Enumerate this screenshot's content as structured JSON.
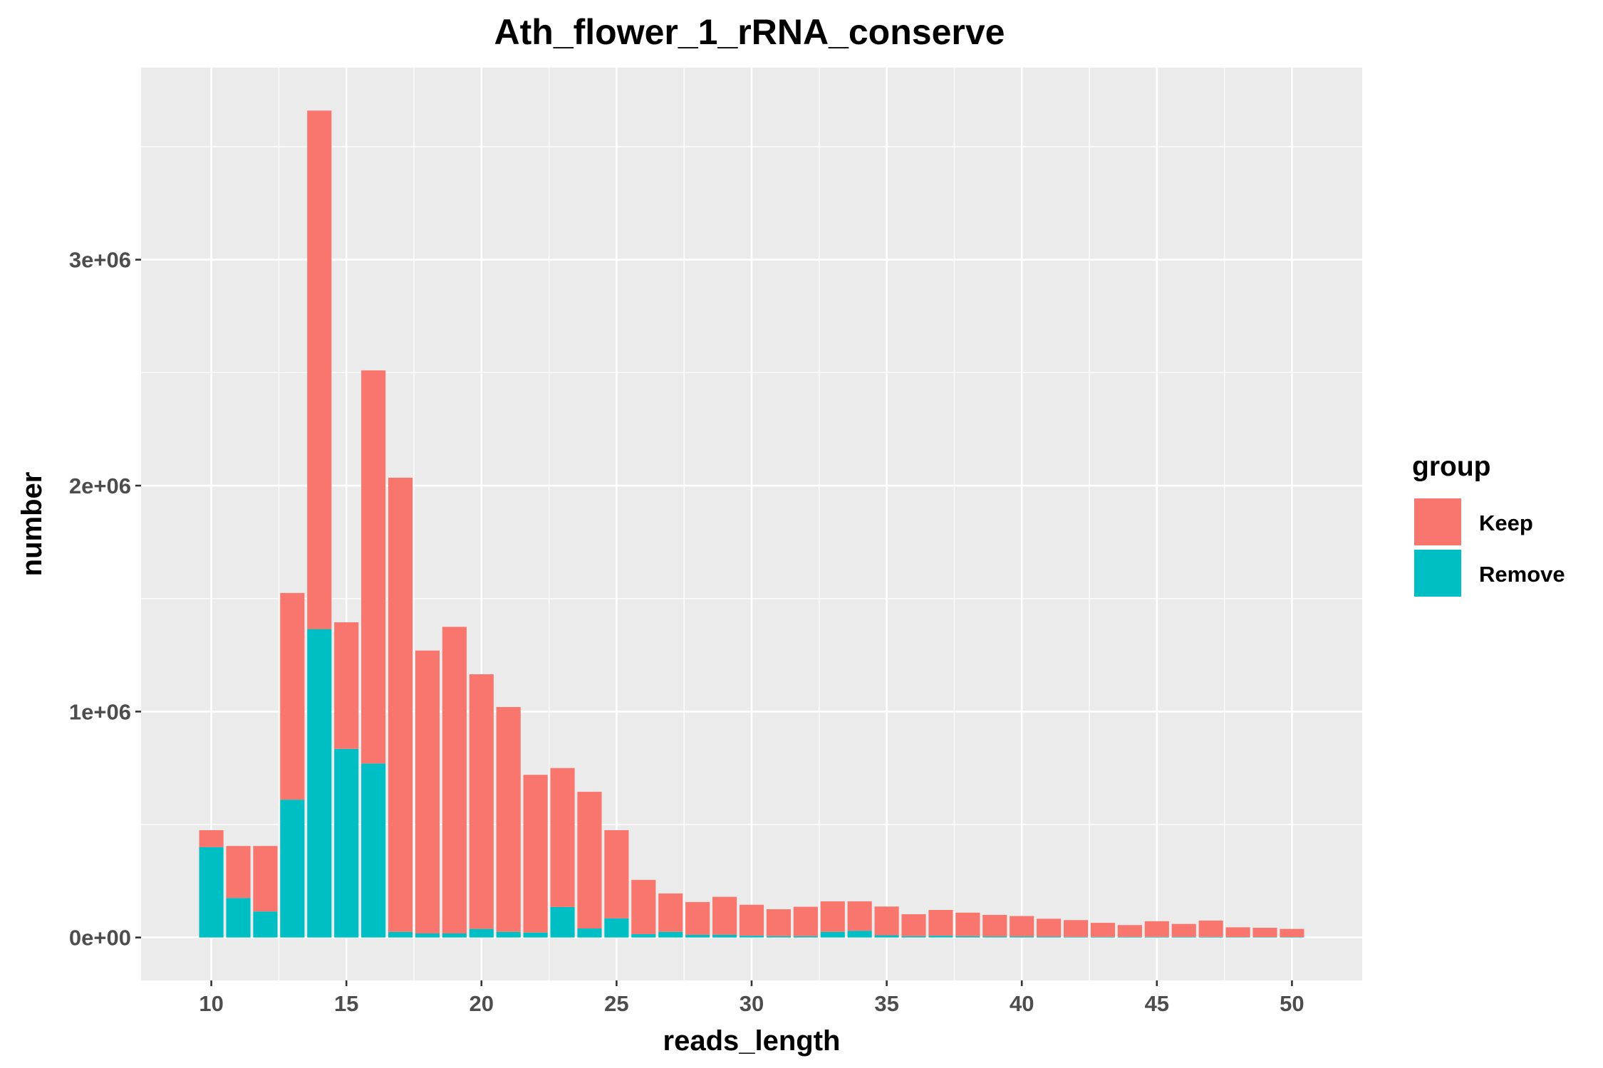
{
  "chart_data": {
    "type": "bar",
    "stacked": true,
    "title": "Ath_flower_1_rRNA_conserve",
    "xlabel": "reads_length",
    "ylabel": "number",
    "x": [
      10,
      11,
      12,
      13,
      14,
      15,
      16,
      17,
      18,
      19,
      20,
      21,
      22,
      23,
      24,
      25,
      26,
      27,
      28,
      29,
      30,
      31,
      32,
      33,
      34,
      35,
      36,
      37,
      38,
      39,
      40,
      41,
      42,
      43,
      44,
      45,
      46,
      47,
      48,
      49,
      50
    ],
    "xlim": [
      7.4,
      52.6
    ],
    "ylim": [
      -190000,
      3850000
    ],
    "x_ticks": [
      10,
      15,
      20,
      25,
      30,
      35,
      40,
      45,
      50
    ],
    "y_ticks": [
      0,
      1000000,
      2000000,
      3000000
    ],
    "y_tick_labels": [
      "0e+00",
      "1e+06",
      "2e+06",
      "3e+06"
    ],
    "grid": true,
    "legend": {
      "title": "group",
      "position": "right"
    },
    "series": [
      {
        "name": "Remove",
        "color": "#00BFC4",
        "values": [
          400000,
          175000,
          115000,
          610000,
          1365000,
          835000,
          770000,
          25000,
          18000,
          18000,
          38000,
          25000,
          22000,
          135000,
          40000,
          85000,
          15000,
          25000,
          12000,
          12000,
          8000,
          6000,
          6000,
          25000,
          30000,
          10000,
          6000,
          8000,
          6000,
          5000,
          5000,
          4000,
          3000,
          3000,
          3000,
          3000,
          3000,
          3000,
          2000,
          2000,
          2000
        ]
      },
      {
        "name": "Keep",
        "color": "#F8766D",
        "values": [
          75000,
          230000,
          290000,
          915000,
          2295000,
          560000,
          1740000,
          2010000,
          1252000,
          1357000,
          1127000,
          995000,
          698000,
          615000,
          605000,
          390000,
          240000,
          170000,
          145000,
          168000,
          137000,
          119000,
          130000,
          135000,
          130000,
          127000,
          97000,
          114000,
          104000,
          95000,
          90000,
          79000,
          74000,
          62000,
          52000,
          69000,
          57000,
          72000,
          43000,
          41000,
          36000
        ]
      }
    ]
  }
}
